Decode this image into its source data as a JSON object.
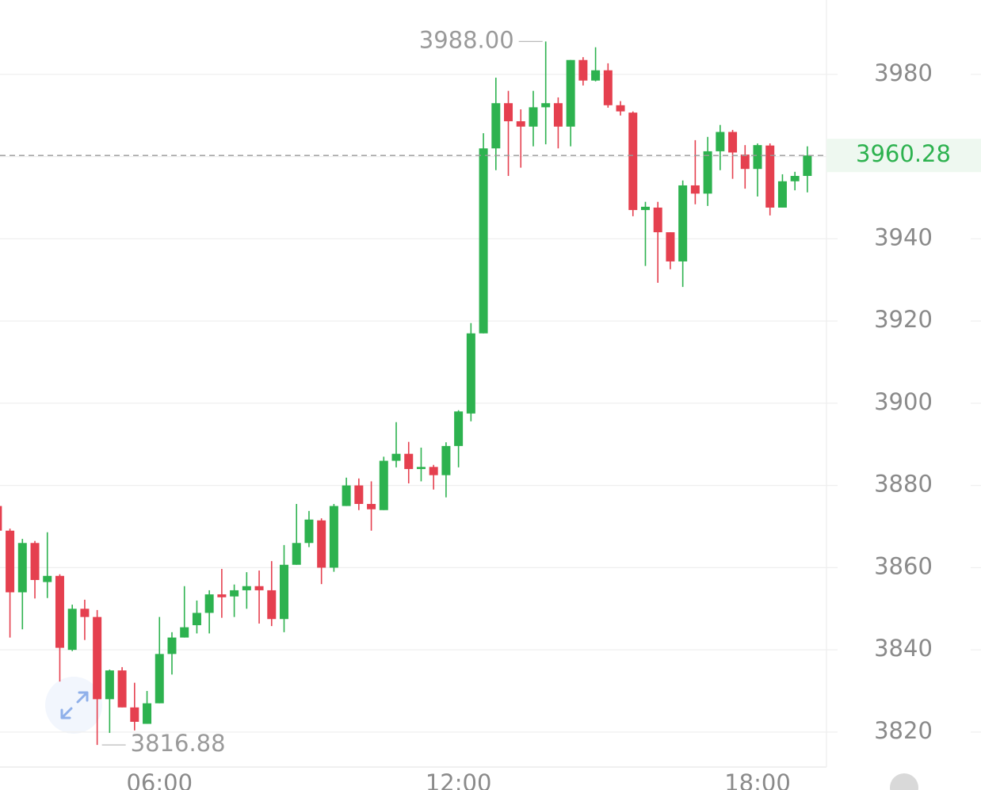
{
  "chart_data": {
    "type": "candlestick",
    "x": [
      "02:45",
      "03:00",
      "03:15",
      "03:30",
      "03:45",
      "04:00",
      "04:15",
      "04:30",
      "04:45",
      "05:00",
      "05:15",
      "05:30",
      "05:45",
      "06:00",
      "06:15",
      "06:30",
      "06:45",
      "07:00",
      "07:15",
      "07:30",
      "07:45",
      "08:00",
      "08:15",
      "08:30",
      "08:45",
      "09:00",
      "09:15",
      "09:30",
      "09:45",
      "10:00",
      "10:15",
      "10:30",
      "10:45",
      "11:00",
      "11:15",
      "11:30",
      "11:45",
      "12:00",
      "12:15",
      "12:30",
      "12:45",
      "13:00",
      "13:15",
      "13:30",
      "13:45",
      "14:00",
      "14:15",
      "14:30",
      "14:45",
      "15:00",
      "15:15",
      "15:30",
      "15:45",
      "16:00",
      "16:15",
      "16:30",
      "16:45",
      "17:00",
      "17:15",
      "17:30",
      "17:45",
      "18:00",
      "18:15",
      "18:30",
      "18:45",
      "19:00"
    ],
    "open": [
      3875,
      3869,
      3854,
      3866,
      3856.5,
      3858,
      3840,
      3850,
      3848,
      3828,
      3835,
      3826,
      3822,
      3827,
      3839,
      3843,
      3846,
      3849,
      3853.5,
      3853,
      3854.5,
      3855.5,
      3854.5,
      3847.5,
      3860.7,
      3866,
      3871.5,
      3860,
      3875,
      3880,
      3875.5,
      3874,
      3886,
      3887.7,
      3884,
      3884.5,
      3882.5,
      3889.6,
      3897.5,
      3917,
      3962,
      3973,
      3968.6,
      3967.3,
      3972,
      3973,
      3967.3,
      3983.5,
      3978.5,
      3981,
      3972.5,
      3970.7,
      3947,
      3947.6,
      3941.6,
      3934.5,
      3953,
      3951,
      3961.3,
      3966,
      3960.5,
      3957,
      3962.7,
      3947.6,
      3954,
      3955.3
    ],
    "high": [
      3876,
      3869.5,
      3867,
      3866.5,
      3868.6,
      3858.4,
      3851,
      3852.2,
      3849.7,
      3835.2,
      3835.8,
      3832,
      3830,
      3848,
      3844.3,
      3855.5,
      3852,
      3854.5,
      3859.7,
      3855.9,
      3858.9,
      3859.3,
      3861.6,
      3865.5,
      3875.5,
      3873.8,
      3872,
      3875.5,
      3881.9,
      3881.7,
      3881,
      3887,
      3895.4,
      3890.6,
      3889.2,
      3885,
      3890.5,
      3898.3,
      3919.5,
      3965.7,
      3979.2,
      3976,
      3971.5,
      3976,
      3988.0,
      3974.4,
      3983.5,
      3984.2,
      3986.6,
      3982.7,
      3973.5,
      3971,
      3949,
      3949,
      3941.6,
      3954.2,
      3964,
      3964.8,
      3967.7,
      3966.5,
      3962.8,
      3963.2,
      3963.2,
      3955.7,
      3956.3,
      3962.5
    ],
    "low": [
      3868,
      3843,
      3845,
      3852.5,
      3852.6,
      3832.3,
      3839.7,
      3842.4,
      3816.88,
      3819.8,
      3826,
      3820.4,
      3822,
      3827,
      3834,
      3843,
      3844,
      3844,
      3847.8,
      3848,
      3850,
      3846.4,
      3845.8,
      3844.3,
      3860.7,
      3865,
      3856,
      3859,
      3875,
      3874,
      3869,
      3874,
      3884.4,
      3880.5,
      3881,
      3879,
      3877.1,
      3884.4,
      3895.6,
      3917,
      3956.7,
      3955.3,
      3957.3,
      3962.5,
      3963,
      3962,
      3962.5,
      3977.3,
      3978.3,
      3971.9,
      3970,
      3945.5,
      3933.4,
      3929.3,
      3932.6,
      3928.3,
      3948.4,
      3948,
      3956.7,
      3954.6,
      3952.2,
      3950.3,
      3945.7,
      3947.6,
      3951.8,
      3951.3
    ],
    "close": [
      3869,
      3854,
      3866,
      3857,
      3858,
      3840.5,
      3850,
      3848,
      3828,
      3835,
      3826,
      3822.5,
      3827,
      3839,
      3843,
      3845.5,
      3849,
      3853.5,
      3852.8,
      3854.5,
      3855.5,
      3854.5,
      3847.5,
      3860.7,
      3866,
      3871.7,
      3860,
      3875,
      3880,
      3875.5,
      3874.2,
      3886,
      3887.7,
      3884,
      3884.5,
      3882.5,
      3889.6,
      3898,
      3917,
      3962,
      3973,
      3968.6,
      3967.3,
      3972,
      3973,
      3967.3,
      3983.5,
      3978.5,
      3981,
      3972.5,
      3971,
      3947,
      3947.8,
      3941.6,
      3934.5,
      3953,
      3951,
      3961.3,
      3966,
      3961,
      3957,
      3962.8,
      3947.6,
      3954,
      3955.3,
      3960.28
    ],
    "up_color": "#2db24f",
    "down_color": "#e5404f",
    "ylim": [
      3811.5,
      3998.1
    ],
    "yticks": [
      3820,
      3840,
      3860,
      3880,
      3900,
      3920,
      3940,
      3960,
      3980
    ],
    "xlim": [
      "02:48",
      "19:23"
    ],
    "xticks": [
      "06:00",
      "12:00",
      "18:00"
    ],
    "grid": true,
    "last_price": 3960.28,
    "high_marker": {
      "value": 3988.0,
      "label": "3988.00"
    },
    "low_marker": 3816.88
  }
}
